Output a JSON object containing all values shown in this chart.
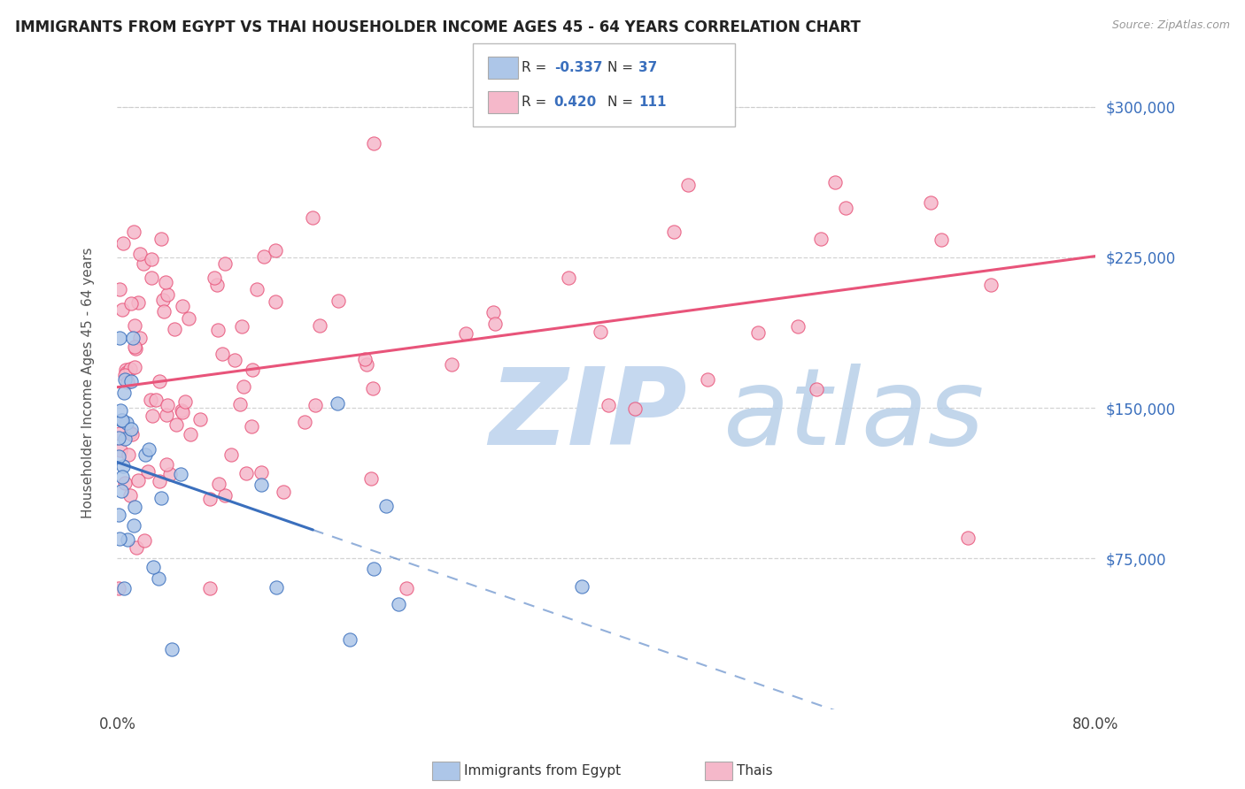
{
  "title": "IMMIGRANTS FROM EGYPT VS THAI HOUSEHOLDER INCOME AGES 45 - 64 YEARS CORRELATION CHART",
  "source": "Source: ZipAtlas.com",
  "ylabel": "Householder Income Ages 45 - 64 years",
  "x_min": 0.0,
  "x_max": 0.8,
  "y_min": 0,
  "y_max": 325000,
  "egypt_R": -0.337,
  "egypt_N": 37,
  "thai_R": 0.42,
  "thai_N": 111,
  "egypt_color": "#adc6e8",
  "egypt_line_color": "#3a6fbd",
  "thai_color": "#f5b8ca",
  "thai_line_color": "#e8547a",
  "background_color": "#ffffff",
  "grid_color": "#c8c8c8",
  "title_color": "#222222",
  "watermark_zip_color": "#c5d8ef",
  "watermark_atlas_color": "#b8cfe8",
  "right_tick_color": "#3a6fbd"
}
